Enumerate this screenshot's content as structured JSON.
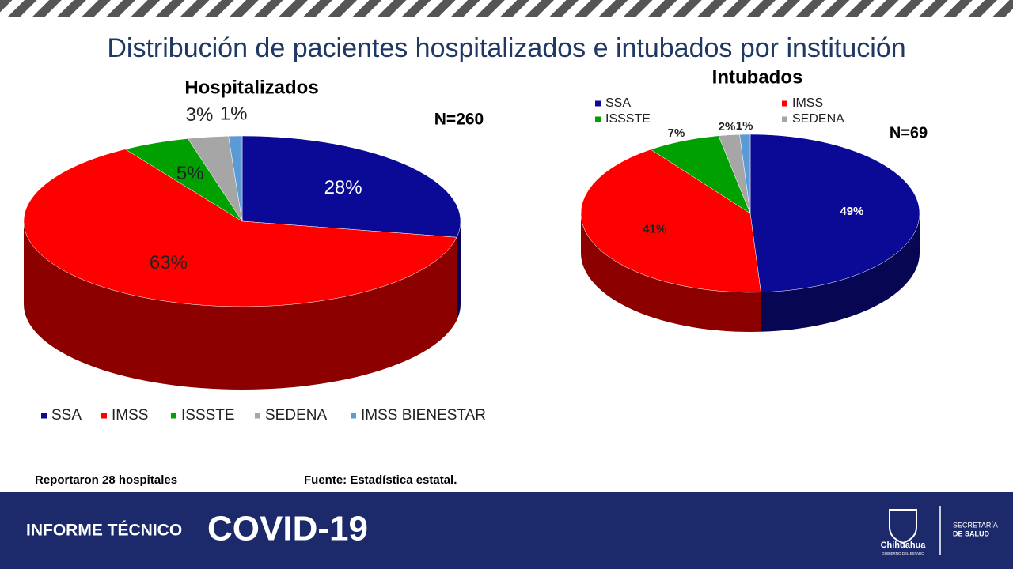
{
  "slide": {
    "title": "Distribución de pacientes hospitalizados e intubados por institución",
    "notes": [
      "Reportaron 28 hospitales",
      "Fuente: Estadística estatal."
    ],
    "footer": {
      "label": "INFORME TÉCNICO",
      "title": "COVID-19",
      "logo": "Chihuahua",
      "logo_sub": "GOBIERNO DEL ESTADO",
      "agency": [
        "SECRETARÍA",
        "DE SALUD"
      ]
    }
  },
  "chart_data": [
    {
      "type": "pie",
      "title": "Hospitalizados",
      "annotation": "N=260",
      "categories": [
        "SSA",
        "IMSS",
        "ISSSTE",
        "SEDENA",
        "IMSS BIENESTAR"
      ],
      "values": [
        28,
        63,
        5,
        3,
        1
      ],
      "value_labels": [
        "28%",
        "63%",
        "5%",
        "3%",
        "1%"
      ],
      "colors": [
        "#0a0a96",
        "#ff0000",
        "#00a000",
        "#a6a6a6",
        "#5b9bd5"
      ],
      "legend": "bottom"
    },
    {
      "type": "pie",
      "title": "Intubados",
      "annotation": "N=69",
      "categories": [
        "SSA",
        "IMSS",
        "ISSSTE",
        "SEDENA",
        null
      ],
      "values": [
        49,
        41,
        7,
        2,
        1
      ],
      "value_labels": [
        "49%",
        "41%",
        "7%",
        "2%",
        "1%"
      ],
      "colors": [
        "#0a0a96",
        "#ff0000",
        "#00a000",
        "#a6a6a6",
        "#5b9bd5"
      ],
      "legend": "top"
    }
  ]
}
